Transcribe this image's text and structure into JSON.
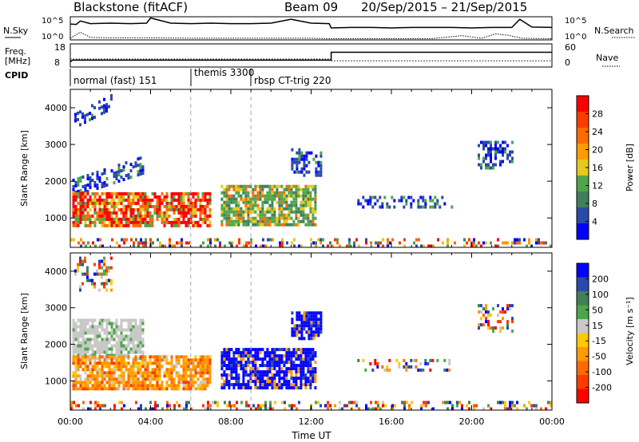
{
  "header": {
    "station": "Blackstone (fitACF)",
    "beam": "Beam 09",
    "date_range": "20/Sep/2015 – 21/Sep/2015"
  },
  "noise_panel": {
    "left_label": "N.Sky",
    "right_label": "N.Search",
    "left_ticks": [
      "10^5",
      "10^0"
    ],
    "right_ticks": [
      "10^5",
      "10^0"
    ]
  },
  "freq_panel": {
    "left_label_1": "Freq.",
    "left_label_2": "[MHz]",
    "right_label": "Nave",
    "left_ticks": [
      "18",
      "8"
    ],
    "right_ticks": [
      "60",
      "0"
    ]
  },
  "cpid": {
    "label": "CPID",
    "segments": [
      {
        "name": "normal (fast) 151",
        "start_hour": 0.0
      },
      {
        "name": "themis 3300",
        "start_hour": 6.0
      },
      {
        "name": "rbsp CT-trig 220",
        "start_hour": 9.0
      }
    ]
  },
  "colors": {
    "power_scale": [
      "#0000ff",
      "#2a4aa8",
      "#3f7f5a",
      "#4fa64a",
      "#e8c81a",
      "#ff9a00",
      "#ff6a00",
      "#ff3a00",
      "#ff0000"
    ],
    "velocity_scale": [
      "#0000ff",
      "#2a4aa8",
      "#3f7f5a",
      "#4fa64a",
      "#c8c8c8",
      "#ffc800",
      "#ff9a00",
      "#ff6a00",
      "#ff3a00",
      "#ff0000"
    ]
  },
  "chart_data": [
    {
      "type": "line",
      "title": "N.Sky / N.Search",
      "x_range_hours": [
        0,
        24
      ],
      "series": [
        {
          "name": "N.Sky",
          "x": [
            0,
            0.3,
            0.5,
            1,
            2,
            3,
            3.8,
            4,
            5,
            6,
            7,
            8,
            9,
            10,
            11,
            12,
            12.9,
            13,
            14,
            15,
            16,
            17,
            18,
            19,
            20,
            21,
            22,
            22.4,
            23,
            24
          ],
          "y": [
            3.5,
            3.4,
            4.2,
            3.6,
            3.7,
            3.6,
            3.7,
            4.9,
            3.7,
            3.6,
            3.7,
            3.6,
            3.6,
            3.7,
            4.6,
            3.7,
            3.6,
            2.6,
            2.7,
            2.7,
            2.6,
            2.7,
            2.7,
            2.7,
            2.6,
            2.7,
            2.7,
            4.6,
            2.8,
            2.7
          ]
        },
        {
          "name": "N.Search",
          "x": [
            0,
            0.5,
            1,
            2,
            4,
            6,
            8,
            10,
            12,
            13,
            16,
            18,
            19.5,
            20.5,
            21.2,
            21.8,
            22.5,
            24
          ],
          "y": [
            0.2,
            1.6,
            0.4,
            0.3,
            0.3,
            0.2,
            0.2,
            0.2,
            0.2,
            0.1,
            0.1,
            0.1,
            0.8,
            0.2,
            1.2,
            0.9,
            0.2,
            0.1
          ]
        }
      ]
    },
    {
      "type": "line",
      "title": "Freq. / Nave",
      "x_range_hours": [
        0,
        24
      ],
      "series": [
        {
          "name": "Freq.",
          "x": [
            0,
            0.1,
            13,
            13,
            24
          ],
          "y": [
            10,
            10.8,
            10.8,
            14.5,
            14.5
          ]
        },
        {
          "name": "Nave",
          "x": [
            0,
            13,
            13,
            24
          ],
          "y": [
            20,
            20,
            15,
            15
          ]
        }
      ]
    },
    {
      "type": "heatmap",
      "title": "",
      "xlabel": "",
      "ylabel": "Slant Range [km]",
      "colorbar_label": "Power [dB]",
      "colorbar_ticks": [
        "4",
        "8",
        "12",
        "16",
        "20",
        "24",
        "28"
      ],
      "y_ticks": [
        "1000",
        "2000",
        "3000",
        "4000"
      ],
      "x_range_hours": [
        0,
        24
      ],
      "y_range_km": [
        200,
        4500
      ],
      "regions": [
        {
          "x": [
            0.1,
            3.6
          ],
          "y": [
            1650,
            2700
          ],
          "level": "low",
          "shape": "rising"
        },
        {
          "x": [
            0.2,
            2.1
          ],
          "y": [
            3500,
            4400
          ],
          "level": "low",
          "shape": "rising"
        },
        {
          "x": [
            0.1,
            7.0
          ],
          "y": [
            800,
            1700
          ],
          "level": "high"
        },
        {
          "x": [
            7.5,
            12.2
          ],
          "y": [
            850,
            1900
          ],
          "level": "mid"
        },
        {
          "x": [
            11.0,
            12.5
          ],
          "y": [
            2200,
            2900
          ],
          "level": "low"
        },
        {
          "x": [
            14.3,
            19.0
          ],
          "y": [
            1300,
            1600
          ],
          "level": "low"
        },
        {
          "x": [
            20.3,
            22.0
          ],
          "y": [
            2400,
            3100
          ],
          "level": "low"
        },
        {
          "x": [
            0,
            24
          ],
          "y": [
            200,
            450
          ],
          "level": "mixed"
        }
      ]
    },
    {
      "type": "heatmap",
      "title": "",
      "xlabel": "Time UT",
      "ylabel": "Slant Range [km]",
      "colorbar_label": "Velocity [m s⁻¹]",
      "colorbar_ticks": [
        "200",
        "100",
        "50",
        "15",
        "-15",
        "-50",
        "-100",
        "-200"
      ],
      "y_ticks": [
        "1000",
        "2000",
        "3000",
        "4000"
      ],
      "x_ticks": [
        "00:00",
        "04:00",
        "08:00",
        "12:00",
        "16:00",
        "20:00",
        "00:00"
      ],
      "x_range_hours": [
        0,
        24
      ],
      "y_range_km": [
        200,
        4500
      ],
      "regions": [
        {
          "x": [
            0.1,
            3.6
          ],
          "y": [
            1650,
            2700
          ],
          "level": "grey"
        },
        {
          "x": [
            0.2,
            2.1
          ],
          "y": [
            3500,
            4400
          ],
          "level": "mixed"
        },
        {
          "x": [
            0.1,
            7.0
          ],
          "y": [
            800,
            1700
          ],
          "level": "orange"
        },
        {
          "x": [
            7.5,
            12.2
          ],
          "y": [
            850,
            1900
          ],
          "level": "blue"
        },
        {
          "x": [
            11.0,
            12.5
          ],
          "y": [
            2200,
            2900
          ],
          "level": "blue"
        },
        {
          "x": [
            14.3,
            19.0
          ],
          "y": [
            1300,
            1600
          ],
          "level": "mixed"
        },
        {
          "x": [
            20.3,
            22.0
          ],
          "y": [
            2400,
            3100
          ],
          "level": "mixed"
        },
        {
          "x": [
            0,
            24
          ],
          "y": [
            200,
            450
          ],
          "level": "mixed"
        }
      ]
    }
  ]
}
